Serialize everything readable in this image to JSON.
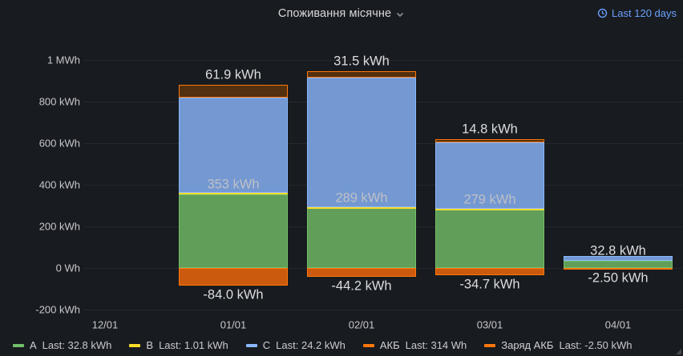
{
  "panel": {
    "title": "Споживання місячне",
    "time_range": "Last 120 days"
  },
  "colors": {
    "background": "#181b1f",
    "grid": "rgba(204,204,220,0.08)",
    "accent_blue": "#6ba0ff",
    "label_outside": "#dcdde0",
    "label_inside": "#bfc0c6"
  },
  "chart_data": {
    "type": "bar",
    "stacked": true,
    "title": "Споживання місячне",
    "xlabel": "",
    "ylabel": "",
    "ylim_kwh": [
      -200,
      1040
    ],
    "grid": true,
    "legend_position": "bottom",
    "categories": [
      "12/01",
      "01/01",
      "02/01",
      "03/01",
      "04/01"
    ],
    "y_ticks": [
      {
        "label": "1 MWh",
        "value": 1000
      },
      {
        "label": "800 kWh",
        "value": 800
      },
      {
        "label": "600 kWh",
        "value": 600
      },
      {
        "label": "400 kWh",
        "value": 400
      },
      {
        "label": "200 kWh",
        "value": 200
      },
      {
        "label": "0 Wh",
        "value": 0
      },
      {
        "label": "-200 kWh",
        "value": -200
      }
    ],
    "series": [
      {
        "name": "A",
        "color": "#73BF69",
        "fill": "#619e5a",
        "values": [
          null,
          353,
          289,
          279,
          32.8
        ]
      },
      {
        "name": "B",
        "color": "#FADE2A",
        "fill": "#cdb728",
        "values": [
          null,
          7,
          5,
          5,
          1.01
        ]
      },
      {
        "name": "C",
        "color": "#8AB8FF",
        "fill": "#7398d2",
        "values": [
          null,
          460,
          620,
          320,
          24.2
        ]
      },
      {
        "name": "АКБ",
        "color": "#FF780A",
        "fill": "#53300e",
        "values": [
          null,
          61.9,
          31.5,
          14.8,
          0.314
        ]
      },
      {
        "name": "Заряд АКБ",
        "color": "#FF780A",
        "fill": "#cb5a0e",
        "values": [
          null,
          -84.0,
          -44.2,
          -34.7,
          -2.5
        ]
      }
    ],
    "value_labels": {
      "top": [
        null,
        "61.9 kWh",
        "31.5 kWh",
        "14.8 kWh",
        null
      ],
      "mid": [
        null,
        "353 kWh",
        "289 kWh",
        "279 kWh",
        "32.8 kWh"
      ],
      "bottom": [
        null,
        "-84.0 kWh",
        "-44.2 kWh",
        "-34.7 kWh",
        "-2.50 kWh"
      ]
    }
  },
  "legend": {
    "items": [
      {
        "name": "A",
        "last": "Last: 32.8 kWh",
        "color": "#73BF69"
      },
      {
        "name": "B",
        "last": "Last: 1.01 kWh",
        "color": "#FADE2A"
      },
      {
        "name": "C",
        "last": "Last: 24.2 kWh",
        "color": "#8AB8FF"
      },
      {
        "name": "АКБ",
        "last": "Last: 314 Wh",
        "color": "#FF780A"
      },
      {
        "name": "Заряд АКБ",
        "last": "Last: -2.50 kWh",
        "color": "#FF780A"
      }
    ]
  }
}
